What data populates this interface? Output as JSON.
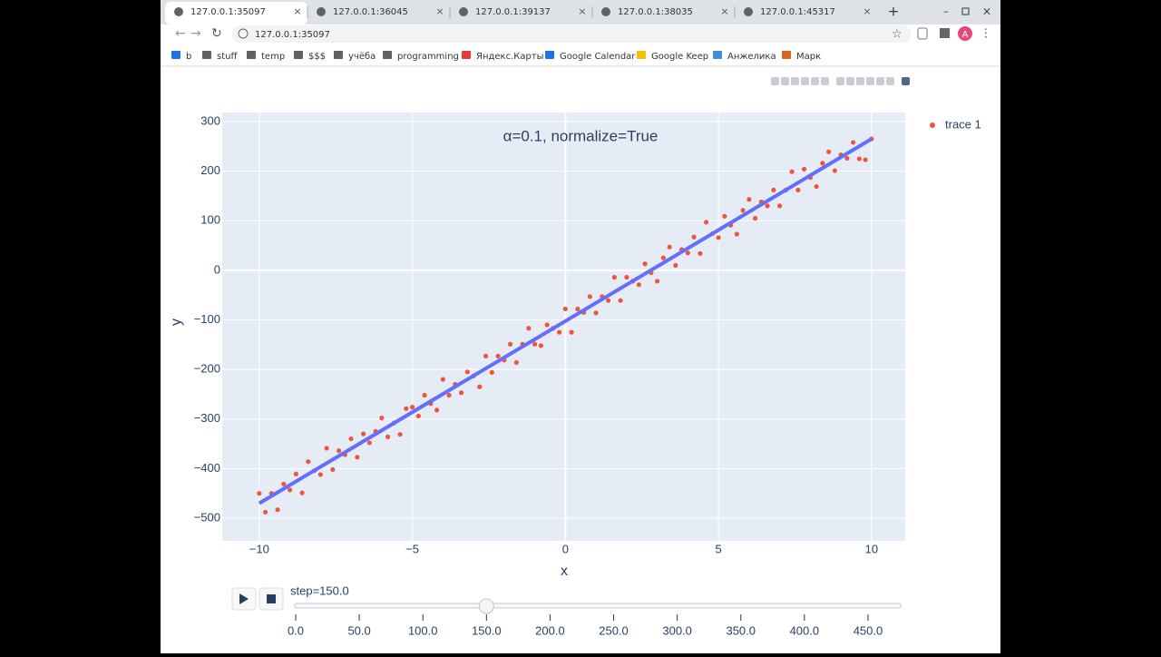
{
  "browser": {
    "tabs": [
      "127.0.0.1:35097",
      "127.0.0.1:36045",
      "127.0.0.1:39137",
      "127.0.0.1:38035",
      "127.0.0.1:45317"
    ],
    "url": "127.0.0.1:35097",
    "avatar": "A",
    "bookmarks": [
      "b",
      "stuff",
      "temp",
      "$$$",
      "учёба",
      "programming",
      "Яндекс.Карты",
      "Google Calendar",
      "Google Keep",
      "Анжелика",
      "Марк"
    ]
  },
  "chart_data": {
    "type": "scatter",
    "title": "α=0.1, normalize=True",
    "x_label": "x",
    "y_label": "y",
    "xlim": [
      -11.21,
      11.1
    ],
    "ylim": [
      -545.8,
      318.3
    ],
    "xticks": [
      {
        "value": -10,
        "label": "−10"
      },
      {
        "value": -5,
        "label": "−5"
      },
      0,
      5,
      10
    ],
    "yticks": [
      {
        "value": -500,
        "label": "−500"
      },
      {
        "value": -400,
        "label": "−400"
      },
      {
        "value": -300,
        "label": "−300"
      },
      {
        "value": -200,
        "label": "−200"
      },
      {
        "value": -100,
        "label": "−100"
      },
      0,
      100,
      200,
      300
    ],
    "grid": true,
    "legend": "outside-right",
    "series": [
      {
        "name": "trace 1",
        "color": "#ef553b",
        "mode": "markers",
        "x": [
          -10,
          -9.8,
          -9.6,
          -9.4,
          -9.2,
          -9,
          -8.8,
          -8.6,
          -8.4,
          -8.2,
          -8,
          -7.8,
          -7.6,
          -7.4,
          -7.2,
          -7,
          -6.8,
          -6.6,
          -6.4,
          -6.2,
          -6,
          -5.8,
          -5.6,
          -5.4,
          -5.2,
          -5,
          -4.8,
          -4.6,
          -4.4,
          -4.2,
          -4,
          -3.8,
          -3.6,
          -3.4,
          -3.2,
          -3,
          -2.8,
          -2.6,
          -2.4,
          -2.2,
          -2,
          -1.8,
          -1.6,
          -1.4,
          -1.2,
          -1,
          -0.8,
          -0.6,
          -0.4,
          -0.2,
          0,
          0.2,
          0.4,
          0.6,
          0.8,
          1,
          1.2,
          1.4,
          1.6,
          1.8,
          2,
          2.2,
          2.4,
          2.6,
          2.8,
          3,
          3.2,
          3.4,
          3.6,
          3.8,
          4,
          4.2,
          4.4,
          4.6,
          4.8,
          5,
          5.2,
          5.4,
          5.6,
          5.8,
          6,
          6.2,
          6.4,
          6.6,
          6.8,
          7,
          7.2,
          7.4,
          7.6,
          7.8,
          8,
          8.2,
          8.4,
          8.6,
          8.8,
          9,
          9.2,
          9.4,
          9.6,
          9.8,
          10
        ],
        "values": [
          -450,
          -488,
          -450,
          -483,
          -431,
          -443,
          -411,
          -449,
          -386,
          -404,
          -412,
          -359,
          -402,
          -364,
          -372,
          -340,
          -377,
          -330,
          -348,
          -325,
          -298,
          -336,
          -308,
          -331,
          -279,
          -276,
          -294,
          -252,
          -269,
          -282,
          -220,
          -252,
          -230,
          -247,
          -205,
          -213,
          -235,
          -173,
          -206,
          -173,
          -181,
          -149,
          -186,
          -149,
          -117,
          -149,
          -152,
          -110,
          -117,
          -125,
          -78,
          -125,
          -78,
          -85,
          -53,
          -86,
          -53,
          -61,
          -14,
          -61,
          -14,
          -22,
          -29,
          13,
          -5,
          -22,
          25,
          47,
          10,
          42,
          35,
          67,
          34,
          97,
          74,
          66,
          109,
          91,
          73,
          121,
          143,
          105,
          138,
          130,
          162,
          130,
          162,
          199,
          162,
          204,
          187,
          169,
          216,
          239,
          201,
          233,
          226,
          258,
          225,
          223,
          265
        ]
      },
      {
        "color": "#636efa",
        "mode": "lines",
        "x": [
          -10,
          10
        ],
        "values": [
          -470,
          265
        ]
      }
    ]
  },
  "slider": {
    "label": "step=150.0",
    "value": 150,
    "range": [
      0,
      475.7
    ],
    "ticks": [
      {
        "value": 0,
        "label": "0.0"
      },
      {
        "value": 50,
        "label": "50.0"
      },
      {
        "value": 100,
        "label": "100.0"
      },
      {
        "value": 150,
        "label": "150.0"
      },
      {
        "value": 200,
        "label": "200.0"
      },
      {
        "value": 250,
        "label": "250.0"
      },
      {
        "value": 300,
        "label": "300.0"
      },
      {
        "value": 350,
        "label": "350.0"
      },
      {
        "value": 400,
        "label": "400.0"
      },
      {
        "value": 450,
        "label": "450.0"
      }
    ]
  }
}
